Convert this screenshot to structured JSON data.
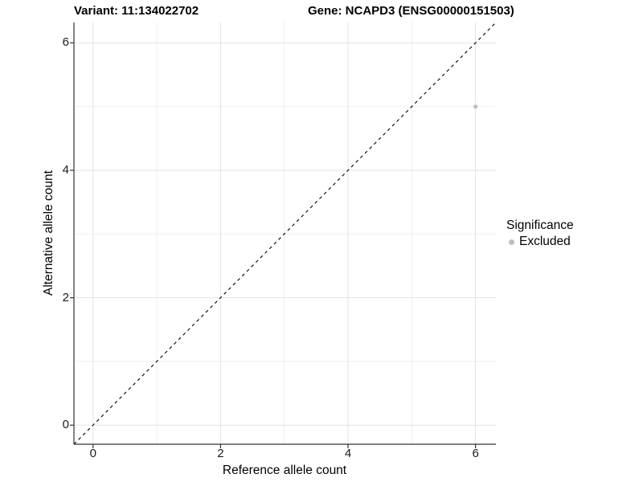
{
  "titles": {
    "variant": "Variant: 11:134022702",
    "gene": "Gene: NCAPD3 (ENSG00000151503)"
  },
  "legend": {
    "title": "Significance",
    "items": [
      {
        "label": "Excluded",
        "color": "#BEBEBE"
      }
    ]
  },
  "chart_data": {
    "type": "scatter",
    "title": "Variant: 11:134022702 / Gene: NCAPD3 (ENSG00000151503)",
    "xlabel": "Reference allele count",
    "ylabel": "Alternative allele count",
    "xlim": [
      -0.3,
      6.32
    ],
    "ylim": [
      -0.3,
      6.32
    ],
    "x_major_ticks": [
      0,
      2,
      4,
      6
    ],
    "y_major_ticks": [
      0,
      2,
      4,
      6
    ],
    "x_minor_gridlines": [
      1,
      3,
      5
    ],
    "y_minor_gridlines": [
      1,
      3,
      5
    ],
    "grid": "major+minor",
    "legend_position": "right",
    "series": [
      {
        "name": "Excluded",
        "color": "#BEBEBE",
        "points": [
          {
            "x": 6,
            "y": 5
          }
        ]
      }
    ],
    "reference_line": {
      "type": "identity",
      "style": "dashed",
      "color": "#000000"
    }
  },
  "colors": {
    "background": "#FFFFFF",
    "grid_major": "#E3E3E3",
    "grid_minor": "#EDEDED",
    "axis_line": "#333333",
    "tick_text": "#1a1a1a",
    "point": "#BEBEBE"
  }
}
